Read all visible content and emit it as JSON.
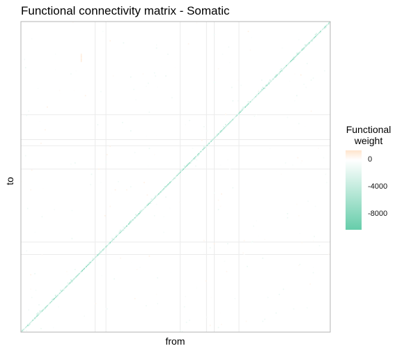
{
  "chart_data": {
    "type": "heatmap",
    "title": "Functional connectivity matrix - Somatic",
    "xlabel": "from",
    "ylabel": "to",
    "x_tick_labels": [],
    "y_tick_labels": [],
    "n": 300,
    "diagonal_weight_range": [
      -9000,
      -2000
    ],
    "offdiagonal_weight_range": [
      -1500,
      800
    ],
    "colors": {
      "min": "#66cdaa",
      "mid": "#ffffff",
      "max": "#ffe4cc",
      "panel_border": "#b3b3b3",
      "grid": "#ebebeb"
    },
    "legend": {
      "title_line1": "Functional",
      "title_line2": "weight",
      "placement": "right",
      "ticks": [
        {
          "label": "0",
          "value": 0
        },
        {
          "label": "-4000",
          "value": -4000
        },
        {
          "label": "-8000",
          "value": -8000
        }
      ],
      "range": [
        -10200,
        1400
      ]
    },
    "grid": true
  }
}
